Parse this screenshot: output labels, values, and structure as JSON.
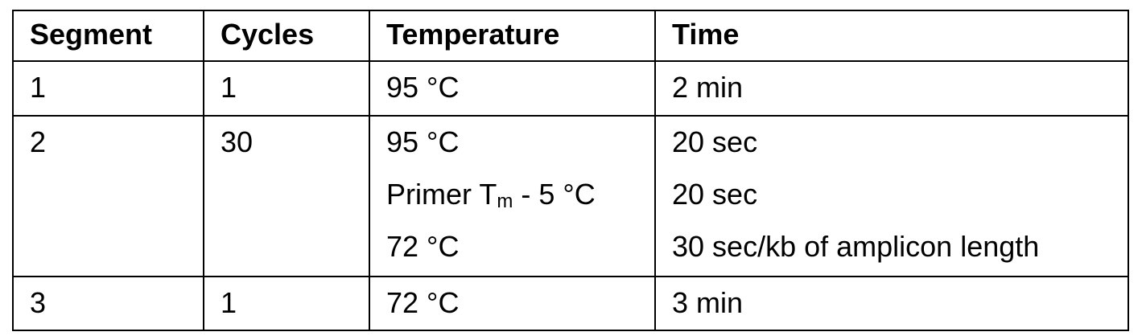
{
  "table": {
    "header": [
      "Segment",
      "Cycles",
      "Temperature",
      "Time"
    ],
    "rows": [
      {
        "segment": "1",
        "cycles": "1",
        "steps": [
          {
            "temperature": "95 °C",
            "time": "2 min"
          }
        ]
      },
      {
        "segment": "2",
        "cycles": "30",
        "steps": [
          {
            "temperature": "95 °C",
            "time": "20 sec"
          },
          {
            "temperature": {
              "prefix": "Primer T",
              "subscript": "m",
              "suffix": "- 5 °C"
            },
            "time": "20 sec"
          },
          {
            "temperature": "72 °C",
            "time": "30 sec/kb of amplicon length"
          }
        ]
      },
      {
        "segment": "3",
        "cycles": "1",
        "steps": [
          {
            "temperature": "72 °C",
            "time": "3 min"
          }
        ]
      }
    ]
  }
}
